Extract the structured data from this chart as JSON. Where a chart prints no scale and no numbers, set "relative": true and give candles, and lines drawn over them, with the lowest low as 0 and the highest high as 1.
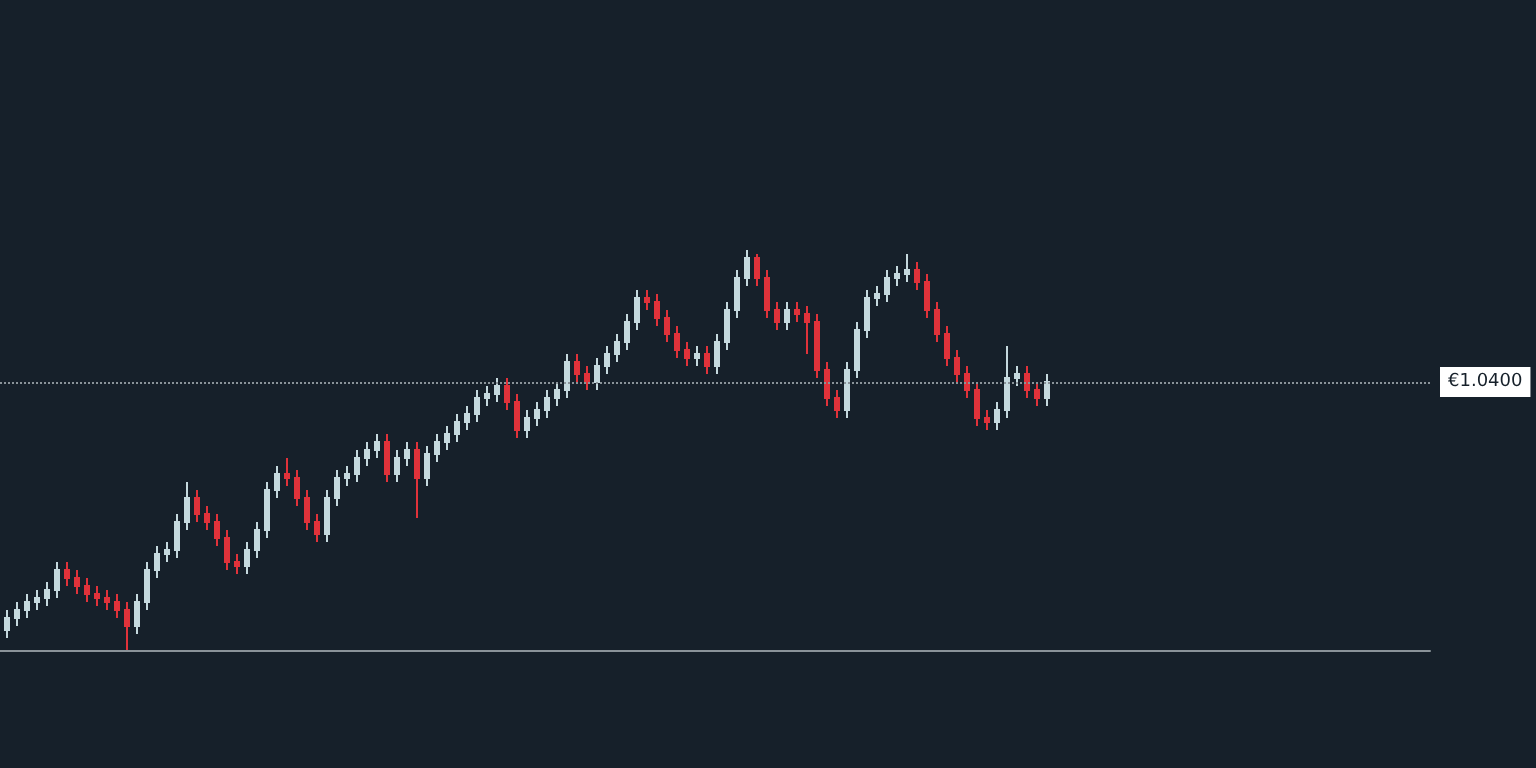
{
  "chart_data": {
    "type": "candlestick",
    "relative": true,
    "grid": false,
    "categories": [
      null,
      null,
      null,
      null,
      null,
      null,
      null,
      null,
      null,
      null,
      null,
      null,
      null,
      null,
      null,
      null,
      null,
      null,
      null,
      null,
      null,
      null,
      null,
      null,
      null,
      null,
      null,
      null,
      null,
      null,
      null,
      null,
      null,
      null,
      null,
      null,
      null,
      null,
      null,
      null,
      null,
      null,
      null,
      null,
      null,
      null,
      null,
      null,
      null,
      null,
      null,
      null,
      null,
      null,
      null,
      null,
      null,
      null,
      null,
      null,
      null,
      null,
      null,
      null,
      null,
      null,
      null,
      null,
      null,
      null,
      null,
      null,
      null,
      null,
      null,
      null,
      null,
      null,
      null,
      null,
      null,
      null,
      null,
      null,
      null,
      null,
      null,
      null,
      null,
      null,
      null,
      null,
      null,
      null,
      null,
      null,
      null,
      null,
      null,
      null,
      null,
      null,
      null,
      null,
      null
    ],
    "ohlc": [
      [
        0.05,
        0.1,
        0.03,
        0.08
      ],
      [
        0.08,
        0.12,
        0.06,
        0.1
      ],
      [
        0.1,
        0.14,
        0.08,
        0.12
      ],
      [
        0.12,
        0.15,
        0.1,
        0.13
      ],
      [
        0.13,
        0.17,
        0.11,
        0.15
      ],
      [
        0.15,
        0.22,
        0.13,
        0.2
      ],
      [
        0.2,
        0.22,
        0.16,
        0.18
      ],
      [
        0.18,
        0.2,
        0.14,
        0.16
      ],
      [
        0.16,
        0.18,
        0.12,
        0.14
      ],
      [
        0.14,
        0.16,
        0.11,
        0.13
      ],
      [
        0.13,
        0.15,
        0.1,
        0.12
      ],
      [
        0.12,
        0.14,
        0.08,
        0.1
      ],
      [
        0.1,
        0.12,
        0,
        0.06
      ],
      [
        0.06,
        0.14,
        0.04,
        0.12
      ],
      [
        0.12,
        0.22,
        0.1,
        0.2
      ],
      [
        0.2,
        0.26,
        0.18,
        0.24
      ],
      [
        0.24,
        0.27,
        0.22,
        0.25
      ],
      [
        0.25,
        0.34,
        0.23,
        0.32
      ],
      [
        0.32,
        0.42,
        0.3,
        0.38
      ],
      [
        0.38,
        0.4,
        0.32,
        0.34
      ],
      [
        0.34,
        0.36,
        0.3,
        0.32
      ],
      [
        0.32,
        0.34,
        0.26,
        0.28
      ],
      [
        0.28,
        0.3,
        0.2,
        0.22
      ],
      [
        0.22,
        0.24,
        0.19,
        0.21
      ],
      [
        0.21,
        0.27,
        0.19,
        0.25
      ],
      [
        0.25,
        0.32,
        0.23,
        0.3
      ],
      [
        0.3,
        0.42,
        0.28,
        0.4
      ],
      [
        0.4,
        0.46,
        0.38,
        0.44
      ],
      [
        0.44,
        0.48,
        0.41,
        0.43
      ],
      [
        0.43,
        0.45,
        0.36,
        0.38
      ],
      [
        0.38,
        0.4,
        0.3,
        0.32
      ],
      [
        0.32,
        0.34,
        0.27,
        0.29
      ],
      [
        0.29,
        0.4,
        0.27,
        0.38
      ],
      [
        0.38,
        0.45,
        0.36,
        0.43
      ],
      [
        0.43,
        0.46,
        0.41,
        0.44
      ],
      [
        0.44,
        0.5,
        0.42,
        0.48
      ],
      [
        0.48,
        0.52,
        0.46,
        0.5
      ],
      [
        0.5,
        0.54,
        0.48,
        0.52
      ],
      [
        0.52,
        0.54,
        0.42,
        0.44
      ],
      [
        0.44,
        0.5,
        0.42,
        0.48
      ],
      [
        0.48,
        0.52,
        0.46,
        0.5
      ],
      [
        0.5,
        0.52,
        0.33,
        0.43
      ],
      [
        0.43,
        0.51,
        0.41,
        0.49
      ],
      [
        0.49,
        0.54,
        0.47,
        0.52
      ],
      [
        0.52,
        0.56,
        0.5,
        0.54
      ],
      [
        0.54,
        0.59,
        0.52,
        0.57
      ],
      [
        0.57,
        0.61,
        0.55,
        0.59
      ],
      [
        0.59,
        0.65,
        0.57,
        0.63
      ],
      [
        0.63,
        0.66,
        0.61,
        0.64
      ],
      [
        0.64,
        0.68,
        0.62,
        0.66
      ],
      [
        0.66,
        0.68,
        0.6,
        0.62
      ],
      [
        0.62,
        0.64,
        0.53,
        0.55
      ],
      [
        0.55,
        0.6,
        0.53,
        0.58
      ],
      [
        0.58,
        0.62,
        0.56,
        0.6
      ],
      [
        0.6,
        0.65,
        0.58,
        0.63
      ],
      [
        0.63,
        0.67,
        0.61,
        0.65
      ],
      [
        0.65,
        0.74,
        0.63,
        0.72
      ],
      [
        0.72,
        0.74,
        0.67,
        0.69
      ],
      [
        0.69,
        0.71,
        0.65,
        0.67
      ],
      [
        0.67,
        0.73,
        0.65,
        0.71
      ],
      [
        0.71,
        0.76,
        0.69,
        0.74
      ],
      [
        0.74,
        0.79,
        0.72,
        0.77
      ],
      [
        0.77,
        0.84,
        0.75,
        0.82
      ],
      [
        0.82,
        0.9,
        0.8,
        0.88
      ],
      [
        0.88,
        0.9,
        0.85,
        0.87
      ],
      [
        0.87,
        0.89,
        0.81,
        0.83
      ],
      [
        0.83,
        0.85,
        0.77,
        0.79
      ],
      [
        0.79,
        0.81,
        0.73,
        0.75
      ],
      [
        0.75,
        0.77,
        0.71,
        0.73
      ],
      [
        0.73,
        0.76,
        0.71,
        0.74
      ],
      [
        0.74,
        0.76,
        0.69,
        0.71
      ],
      [
        0.71,
        0.79,
        0.69,
        0.77
      ],
      [
        0.77,
        0.87,
        0.75,
        0.85
      ],
      [
        0.85,
        0.95,
        0.83,
        0.93
      ],
      [
        0.93,
        1,
        0.91,
        0.98
      ],
      [
        0.98,
        0.99,
        0.91,
        0.93
      ],
      [
        0.93,
        0.95,
        0.83,
        0.85
      ],
      [
        0.85,
        0.87,
        0.8,
        0.82
      ],
      [
        0.82,
        0.87,
        0.8,
        0.85
      ],
      [
        0.85,
        0.87,
        0.82,
        0.84
      ],
      [
        0.84,
        0.86,
        0.74,
        0.82
      ],
      [
        0.82,
        0.84,
        0.68,
        0.7
      ],
      [
        0.7,
        0.72,
        0.61,
        0.63
      ],
      [
        0.63,
        0.65,
        0.58,
        0.6
      ],
      [
        0.6,
        0.72,
        0.58,
        0.7
      ],
      [
        0.7,
        0.82,
        0.68,
        0.8
      ],
      [
        0.8,
        0.9,
        0.78,
        0.88
      ],
      [
        0.88,
        0.91,
        0.86,
        0.89
      ],
      [
        0.89,
        0.95,
        0.87,
        0.93
      ],
      [
        0.93,
        0.96,
        0.91,
        0.94
      ],
      [
        0.94,
        0.99,
        0.92,
        0.95
      ],
      [
        0.95,
        0.97,
        0.9,
        0.92
      ],
      [
        0.92,
        0.94,
        0.83,
        0.85
      ],
      [
        0.85,
        0.87,
        0.77,
        0.79
      ],
      [
        0.79,
        0.81,
        0.71,
        0.73
      ],
      [
        0.73,
        0.75,
        0.67,
        0.69
      ],
      [
        0.69,
        0.71,
        0.63,
        0.65
      ],
      [
        0.65,
        0.67,
        0.56,
        0.58
      ],
      [
        0.58,
        0.6,
        0.55,
        0.57
      ],
      [
        0.57,
        0.62,
        0.55,
        0.6
      ],
      [
        0.6,
        0.76,
        0.58,
        0.68
      ],
      [
        0.68,
        0.71,
        0.66,
        0.69
      ],
      [
        0.69,
        0.71,
        0.63,
        0.65
      ],
      [
        0.65,
        0.67,
        0.61,
        0.63
      ],
      [
        0.63,
        0.69,
        0.61,
        0.67
      ]
    ],
    "ref_lines": [
      {
        "axis": "y",
        "value": 0.67,
        "label": "€1.0400",
        "color": "#8a9399",
        "line_style": "dotted"
      }
    ]
  }
}
